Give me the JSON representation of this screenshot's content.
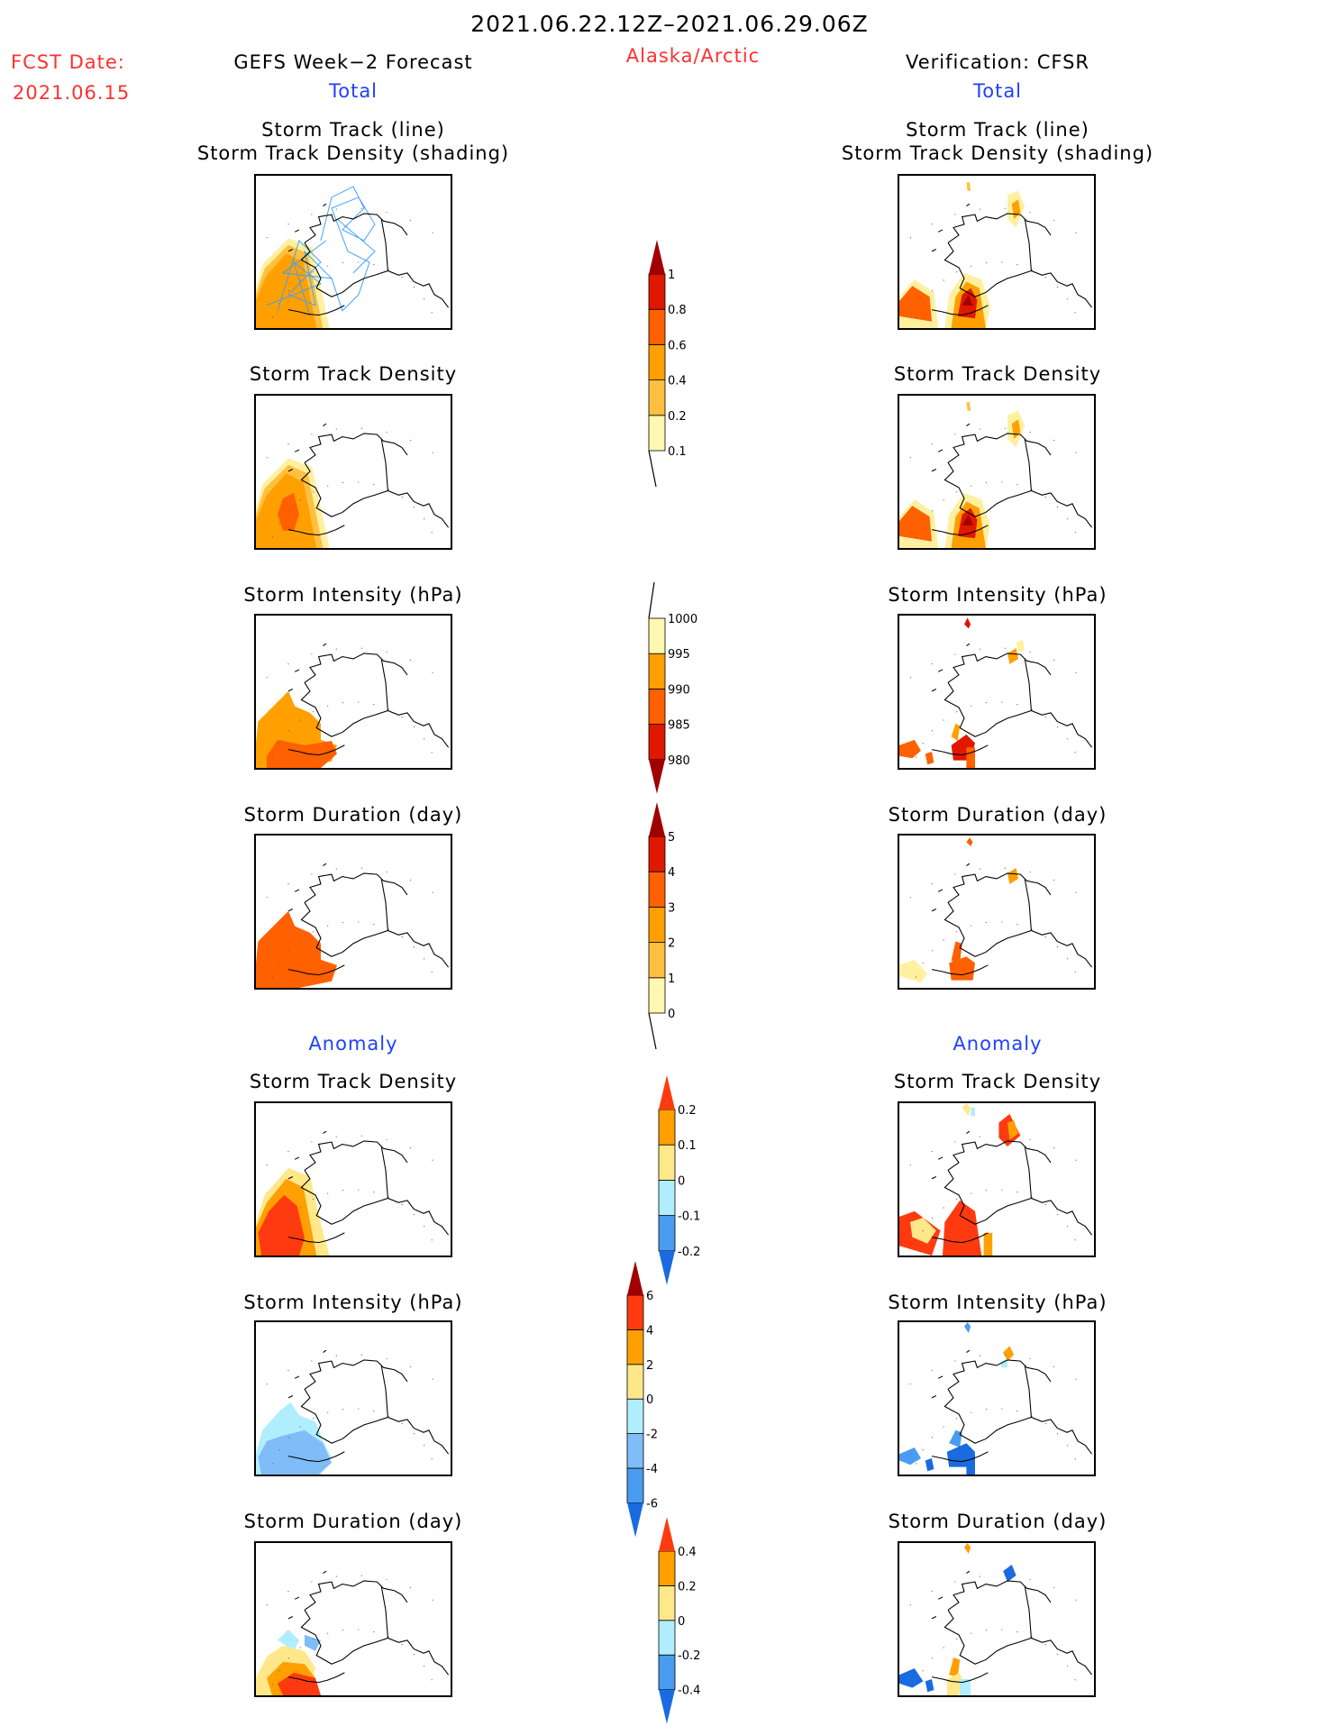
{
  "header": {
    "period": "2021.06.22.12Z–2021.06.29.06Z",
    "fcst_date_label": "FCST Date:",
    "fcst_date": "2021.06.15",
    "region": "Alaska/Arctic",
    "left_title": "GEFS Week−2 Forecast",
    "right_title": "Verification: CFSR",
    "left_total": "Total",
    "right_total": "Total",
    "left_anomaly": "Anomaly",
    "right_anomaly": "Anomaly"
  },
  "panels": {
    "track_line": "Storm Track (line)",
    "track_shading": "Storm Track Density (shading)",
    "density": "Storm Track Density",
    "intensity": "Storm Intensity (hPa)",
    "duration": "Storm Duration (day)"
  },
  "chart_data": [
    {
      "type": "heatmap",
      "name": "total-density-colorbar",
      "labels": [
        "0.1",
        "0.2",
        "0.4",
        "0.6",
        "0.8",
        "1"
      ],
      "colors": [
        "#fff8b0",
        "#ffc040",
        "#ffa000",
        "#ff6000",
        "#e01800"
      ],
      "over_color": "#a00000",
      "under": "line"
    },
    {
      "type": "heatmap",
      "name": "total-intensity-colorbar",
      "labels": [
        "980",
        "985",
        "990",
        "995",
        "1000"
      ],
      "colors": [
        "#e01800",
        "#ff6000",
        "#ffa000",
        "#fff8b0"
      ],
      "under_color": "#a00000",
      "over": "line"
    },
    {
      "type": "heatmap",
      "name": "total-duration-colorbar",
      "labels": [
        "0",
        "1",
        "2",
        "3",
        "4",
        "5"
      ],
      "colors": [
        "#fff8b0",
        "#ffc040",
        "#ffa000",
        "#ff6000",
        "#e01800"
      ],
      "over_color": "#a00000",
      "under": "line"
    },
    {
      "type": "heatmap",
      "name": "anomaly-density-colorbar",
      "labels": [
        "-0.2",
        "-0.1",
        "0",
        "0.1",
        "0.2"
      ],
      "colors": [
        "#4a9cf0",
        "#b0eeff",
        "#ffe88a",
        "#ffa000"
      ],
      "under_color": "#1a6ae0",
      "over_color": "#ff3a10"
    },
    {
      "type": "heatmap",
      "name": "anomaly-intensity-colorbar",
      "labels": [
        "-6",
        "-4",
        "-2",
        "0",
        "2",
        "4",
        "6"
      ],
      "colors": [
        "#4a9cf0",
        "#80bcf8",
        "#b0eeff",
        "#ffe88a",
        "#ffa000",
        "#ff3a10"
      ],
      "under_color": "#1a6ae0",
      "over_color": "#a00000"
    },
    {
      "type": "heatmap",
      "name": "anomaly-duration-colorbar",
      "labels": [
        "-0.4",
        "-0.2",
        "0",
        "0.2",
        "0.4"
      ],
      "colors": [
        "#4a9cf0",
        "#b0eeff",
        "#ffe88a",
        "#ffa000"
      ],
      "under_color": "#1a6ae0",
      "over_color": "#ff3a10"
    }
  ]
}
